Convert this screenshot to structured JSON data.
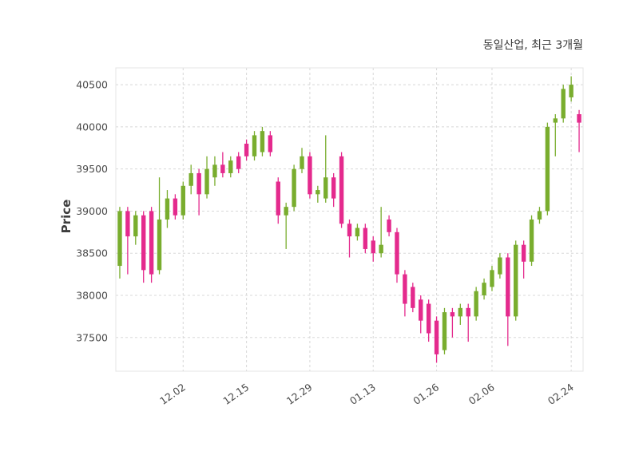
{
  "header": {
    "title": "동일산업, 최근 3개월"
  },
  "colors": {
    "up": "#79ad2e",
    "down": "#e42a8d",
    "grid": "#d8d8d8",
    "text": "#4a4a4a"
  },
  "chart_data": {
    "type": "candlestick",
    "title": "동일산업, 최근 3개월",
    "xlabel": "",
    "ylabel": "Price",
    "ylim": [
      37100,
      40700
    ],
    "grid": true,
    "legend": "none",
    "y_ticks": [
      37500,
      38000,
      38500,
      39000,
      39500,
      40000,
      40500
    ],
    "x_tick_labels": [
      "12.02",
      "12.15",
      "12.29",
      "01.13",
      "01.26",
      "02.06",
      "02.24"
    ],
    "x_tick_indices": [
      8,
      16,
      24,
      32,
      40,
      47,
      57
    ],
    "candles_format": [
      "open",
      "high",
      "low",
      "close"
    ],
    "candles": [
      [
        38350,
        39050,
        38200,
        39000
      ],
      [
        39000,
        39050,
        38250,
        38700
      ],
      [
        38700,
        39000,
        38600,
        38950
      ],
      [
        38950,
        39000,
        38150,
        38300
      ],
      [
        39000,
        39050,
        38150,
        38250
      ],
      [
        38300,
        39400,
        38250,
        38900
      ],
      [
        38900,
        39250,
        38800,
        39150
      ],
      [
        39150,
        39200,
        38900,
        38950
      ],
      [
        38950,
        39350,
        38900,
        39300
      ],
      [
        39300,
        39550,
        39200,
        39450
      ],
      [
        39450,
        39500,
        38950,
        39200
      ],
      [
        39200,
        39650,
        39150,
        39500
      ],
      [
        39400,
        39650,
        39300,
        39550
      ],
      [
        39550,
        39700,
        39400,
        39450
      ],
      [
        39450,
        39650,
        39400,
        39600
      ],
      [
        39650,
        39700,
        39450,
        39500
      ],
      [
        39800,
        39850,
        39600,
        39650
      ],
      [
        39650,
        39950,
        39600,
        39900
      ],
      [
        39700,
        40000,
        39650,
        39950
      ],
      [
        39900,
        39950,
        39650,
        39700
      ],
      [
        39350,
        39400,
        38850,
        38950
      ],
      [
        38950,
        39100,
        38550,
        39050
      ],
      [
        39050,
        39550,
        39000,
        39500
      ],
      [
        39500,
        39750,
        39450,
        39650
      ],
      [
        39650,
        39700,
        39150,
        39200
      ],
      [
        39200,
        39300,
        39100,
        39250
      ],
      [
        39150,
        39900,
        39100,
        39400
      ],
      [
        39400,
        39450,
        39050,
        39150
      ],
      [
        39650,
        39700,
        38800,
        38850
      ],
      [
        38850,
        38900,
        38450,
        38700
      ],
      [
        38700,
        38850,
        38650,
        38800
      ],
      [
        38800,
        38850,
        38500,
        38550
      ],
      [
        38650,
        38700,
        38400,
        38500
      ],
      [
        38500,
        39050,
        38450,
        38600
      ],
      [
        38900,
        38950,
        38700,
        38750
      ],
      [
        38750,
        38800,
        38150,
        38250
      ],
      [
        38250,
        38300,
        37750,
        37900
      ],
      [
        38100,
        38150,
        37800,
        37850
      ],
      [
        37950,
        38000,
        37550,
        37700
      ],
      [
        37900,
        37950,
        37450,
        37550
      ],
      [
        37700,
        37750,
        37200,
        37300
      ],
      [
        37350,
        37850,
        37300,
        37800
      ],
      [
        37800,
        37850,
        37500,
        37750
      ],
      [
        37750,
        37900,
        37650,
        37850
      ],
      [
        37850,
        37900,
        37450,
        37750
      ],
      [
        37750,
        38100,
        37700,
        38050
      ],
      [
        38000,
        38200,
        37950,
        38150
      ],
      [
        38100,
        38350,
        38050,
        38300
      ],
      [
        38250,
        38500,
        38200,
        38450
      ],
      [
        38450,
        38500,
        37400,
        37750
      ],
      [
        37750,
        38650,
        37700,
        38600
      ],
      [
        38600,
        38650,
        38200,
        38400
      ],
      [
        38400,
        38950,
        38350,
        38900
      ],
      [
        38900,
        39050,
        38850,
        39000
      ],
      [
        39000,
        40050,
        38950,
        40000
      ],
      [
        40050,
        40150,
        39650,
        40100
      ],
      [
        40100,
        40500,
        40050,
        40450
      ],
      [
        40350,
        40600,
        40300,
        40500
      ],
      [
        40150,
        40200,
        39700,
        40050
      ]
    ]
  }
}
